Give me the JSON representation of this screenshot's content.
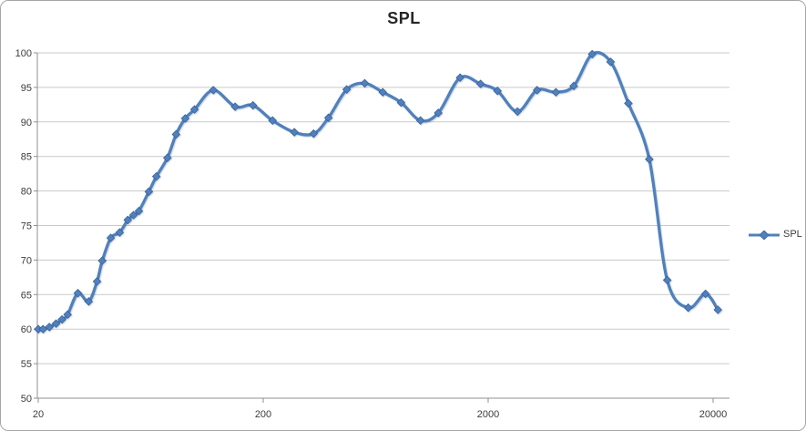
{
  "chart_data": {
    "type": "line",
    "title": "SPL",
    "x_scale": "log",
    "xlabel": "",
    "ylabel": "",
    "ylim": [
      50,
      100
    ],
    "xlim": [
      20,
      23600
    ],
    "grid": "horizontal",
    "yticks": [
      50,
      55,
      60,
      65,
      70,
      75,
      80,
      85,
      90,
      95,
      100
    ],
    "xticks": {
      "values": [
        20,
        200,
        2000,
        20000
      ],
      "labels": [
        "20",
        "200",
        "2000",
        "20000"
      ]
    },
    "x": [
      20,
      21,
      22.4,
      24,
      25.5,
      27,
      30,
      33.5,
      36.5,
      38.5,
      42,
      46,
      50,
      53,
      56,
      62,
      67,
      75,
      82,
      90,
      99,
      120,
      150,
      180,
      220,
      275,
      335,
      390,
      470,
      565,
      680,
      820,
      1000,
      1200,
      1500,
      1850,
      2200,
      2700,
      3300,
      4000,
      4800,
      5800,
      7000,
      8400,
      10400,
      12500,
      15500,
      18500,
      21000
    ],
    "series": [
      {
        "name": "SPL",
        "values": [
          60.0,
          60.0,
          60.3,
          60.8,
          61.4,
          62.1,
          65.2,
          64.0,
          66.9,
          69.9,
          73.2,
          74.0,
          75.8,
          76.5,
          77.1,
          79.9,
          82.1,
          84.8,
          88.2,
          90.5,
          91.8,
          94.6,
          92.2,
          92.4,
          90.2,
          88.5,
          88.3,
          90.6,
          94.7,
          95.6,
          94.3,
          92.8,
          90.2,
          91.3,
          96.4,
          95.5,
          94.5,
          91.5,
          94.6,
          94.3,
          95.2,
          99.8,
          98.7,
          92.7,
          84.6,
          67.1,
          63.1,
          65.1,
          62.8
        ]
      }
    ],
    "legend": [
      {
        "name": "SPL",
        "color": "#4F81BD"
      }
    ],
    "legend_position": "right",
    "marker": "diamond",
    "smooth": true,
    "colors": {
      "series": "#4F81BD",
      "marker_edge": "#3A619B",
      "gridline": "#c9c9c9",
      "axis": "#8f8f8f",
      "tick_text": "#3b3b3b",
      "title_text": "#262626",
      "frame_border": "#a6a6a6",
      "background": "#ffffff"
    }
  }
}
